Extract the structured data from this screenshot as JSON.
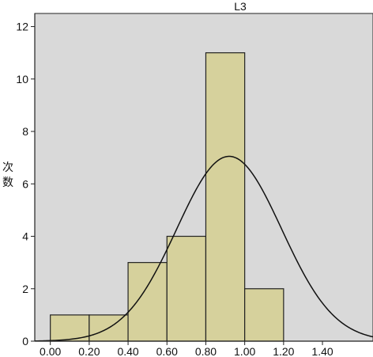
{
  "chart_data": {
    "type": "bar",
    "title": "L3",
    "ylabel": "次数",
    "xlabel": "",
    "xlim": [
      -0.08,
      1.66
    ],
    "ylim": [
      0,
      12.5
    ],
    "xticks": [
      "0.00",
      "0.20",
      "0.40",
      "0.60",
      "0.80",
      "1.00",
      "1.20",
      "1.40"
    ],
    "xtick_values": [
      0,
      0.2,
      0.4,
      0.6,
      0.8,
      1.0,
      1.2,
      1.4
    ],
    "yticks": [
      "0",
      "2",
      "4",
      "6",
      "8",
      "10",
      "12"
    ],
    "ytick_values": [
      0,
      2,
      4,
      6,
      8,
      10,
      12
    ],
    "bins": [
      {
        "start": 0.0,
        "end": 0.2,
        "count": 1
      },
      {
        "start": 0.2,
        "end": 0.4,
        "count": 1
      },
      {
        "start": 0.4,
        "end": 0.6,
        "count": 3
      },
      {
        "start": 0.6,
        "end": 0.8,
        "count": 4
      },
      {
        "start": 0.8,
        "end": 1.0,
        "count": 11
      },
      {
        "start": 1.0,
        "end": 1.2,
        "count": 2
      }
    ],
    "normal_curve": {
      "mean": 0.92,
      "sd": 0.27,
      "peak": 7.05
    },
    "colors": {
      "plot_background": "#d9d9d9",
      "bar_fill": "#d6d19c",
      "bar_stroke": "#222222",
      "curve": "#111111"
    },
    "grid": false,
    "legend": "none"
  }
}
